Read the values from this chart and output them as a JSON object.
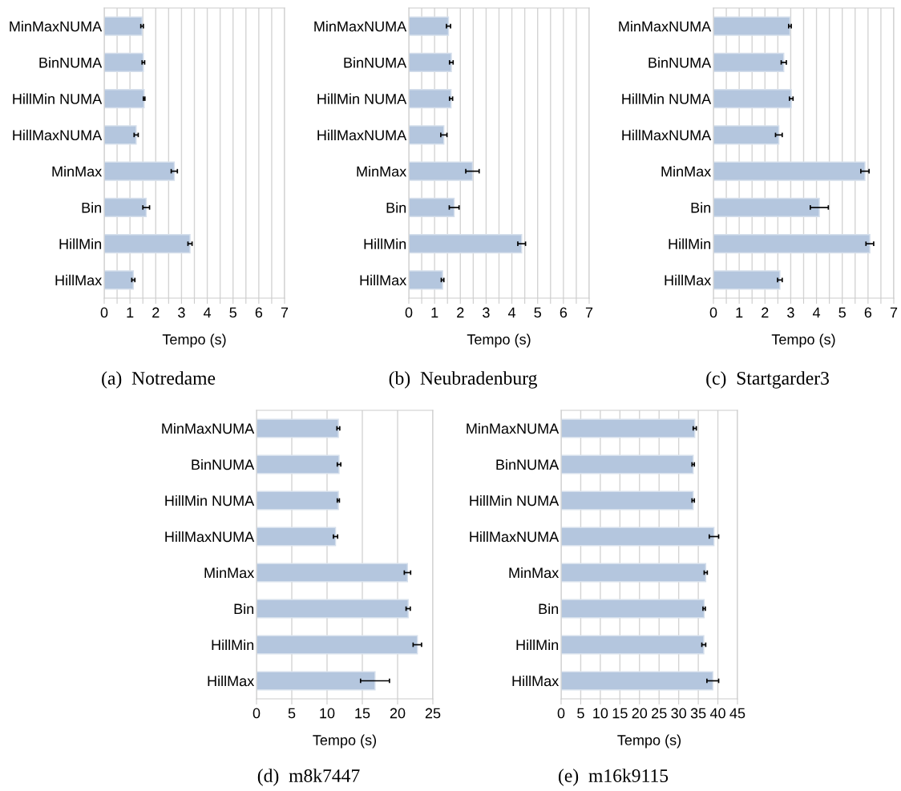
{
  "chart_data": [
    {
      "type": "bar",
      "orientation": "horizontal",
      "title": "(a)  Notredame",
      "xlabel": "Tempo (s)",
      "categories": [
        "MinMaxNUMA",
        "BinNUMA",
        "HillMin NUMA",
        "HillMaxNUMA",
        "MinMax",
        "Bin",
        "HillMin",
        "HillMax"
      ],
      "color": "#b4c6de",
      "values": [
        1.47,
        1.52,
        1.55,
        1.24,
        2.72,
        1.63,
        3.33,
        1.13
      ],
      "errors": [
        0.05,
        0.05,
        0.03,
        0.08,
        0.12,
        0.13,
        0.08,
        0.06
      ],
      "xlim": [
        0,
        7
      ],
      "xticks": [
        0,
        {
          "value": 0.5,
          "label": null
        },
        1,
        {
          "value": 1.5,
          "label": null
        },
        2,
        {
          "value": 2.5,
          "label": null
        },
        3,
        {
          "value": 3.5,
          "label": null
        },
        4,
        {
          "value": 4.5,
          "label": null
        },
        5,
        {
          "value": 5.5,
          "label": null
        },
        6,
        {
          "value": 6.5,
          "label": null
        },
        7
      ],
      "grid": "x",
      "legend": false
    },
    {
      "type": "bar",
      "orientation": "horizontal",
      "title": "(b)  Neubradenburg",
      "xlabel": "Tempo (s)",
      "categories": [
        "MinMaxNUMA",
        "BinNUMA",
        "HillMin NUMA",
        "HillMaxNUMA",
        "MinMax",
        "Bin",
        "HillMin",
        "HillMax"
      ],
      "color": "#b4c6de",
      "values": [
        1.54,
        1.65,
        1.64,
        1.36,
        2.47,
        1.76,
        4.38,
        1.31
      ],
      "errors": [
        0.08,
        0.07,
        0.06,
        0.12,
        0.26,
        0.19,
        0.15,
        0.05
      ],
      "xlim": [
        0,
        7
      ],
      "xticks": [
        0,
        {
          "value": 0.5,
          "label": null
        },
        1,
        {
          "value": 1.5,
          "label": null
        },
        2,
        {
          "value": 2.5,
          "label": null
        },
        3,
        {
          "value": 3.5,
          "label": null
        },
        4,
        {
          "value": 4.5,
          "label": null
        },
        5,
        {
          "value": 5.5,
          "label": null
        },
        6,
        {
          "value": 6.5,
          "label": null
        },
        7
      ],
      "grid": "x",
      "legend": false
    },
    {
      "type": "bar",
      "orientation": "horizontal",
      "title": "(c)  Startgarder3",
      "xlabel": "Tempo (s)",
      "categories": [
        "MinMaxNUMA",
        "BinNUMA",
        "HillMin NUMA",
        "HillMaxNUMA",
        "MinMax",
        "Bin",
        "HillMin",
        "HillMax"
      ],
      "color": "#b4c6de",
      "values": [
        2.97,
        2.73,
        3.02,
        2.54,
        5.88,
        4.11,
        6.07,
        2.58
      ],
      "errors": [
        0.05,
        0.1,
        0.07,
        0.13,
        0.16,
        0.35,
        0.15,
        0.09
      ],
      "xlim": [
        0,
        7
      ],
      "xticks": [
        0,
        {
          "value": 0.5,
          "label": null
        },
        1,
        {
          "value": 1.5,
          "label": null
        },
        2,
        {
          "value": 2.5,
          "label": null
        },
        3,
        {
          "value": 3.5,
          "label": null
        },
        4,
        {
          "value": 4.5,
          "label": null
        },
        5,
        {
          "value": 5.5,
          "label": null
        },
        6,
        {
          "value": 6.5,
          "label": null
        },
        7
      ],
      "grid": "x",
      "legend": false
    },
    {
      "type": "bar",
      "orientation": "horizontal",
      "title": "(d)  m8k7447",
      "xlabel": "Tempo (s)",
      "categories": [
        "MinMaxNUMA",
        "BinNUMA",
        "HillMin NUMA",
        "HillMaxNUMA",
        "MinMax",
        "Bin",
        "HillMin",
        "HillMax"
      ],
      "color": "#b4c6de",
      "values": [
        11.6,
        11.7,
        11.6,
        11.2,
        21.4,
        21.5,
        22.8,
        16.8
      ],
      "errors": [
        0.2,
        0.25,
        0.15,
        0.3,
        0.45,
        0.3,
        0.6,
        2.05
      ],
      "xlim": [
        0,
        25
      ],
      "xticks": [
        0,
        5,
        10,
        15,
        20,
        25
      ],
      "grid": "x",
      "legend": false
    },
    {
      "type": "bar",
      "orientation": "horizontal",
      "title": "(e)  m16k9115",
      "xlabel": "Tempo (s)",
      "categories": [
        "MinMaxNUMA",
        "BinNUMA",
        "HillMin NUMA",
        "HillMaxNUMA",
        "MinMax",
        "Bin",
        "HillMin",
        "HillMax"
      ],
      "color": "#b4c6de",
      "values": [
        34.1,
        33.7,
        33.7,
        39.0,
        36.9,
        36.5,
        36.4,
        38.7
      ],
      "errors": [
        0.4,
        0.3,
        0.3,
        1.2,
        0.4,
        0.3,
        0.5,
        1.5
      ],
      "xlim": [
        0,
        45
      ],
      "xticks": [
        0,
        5,
        10,
        15,
        20,
        25,
        30,
        35,
        40,
        45
      ],
      "grid": "x",
      "legend": false
    }
  ]
}
